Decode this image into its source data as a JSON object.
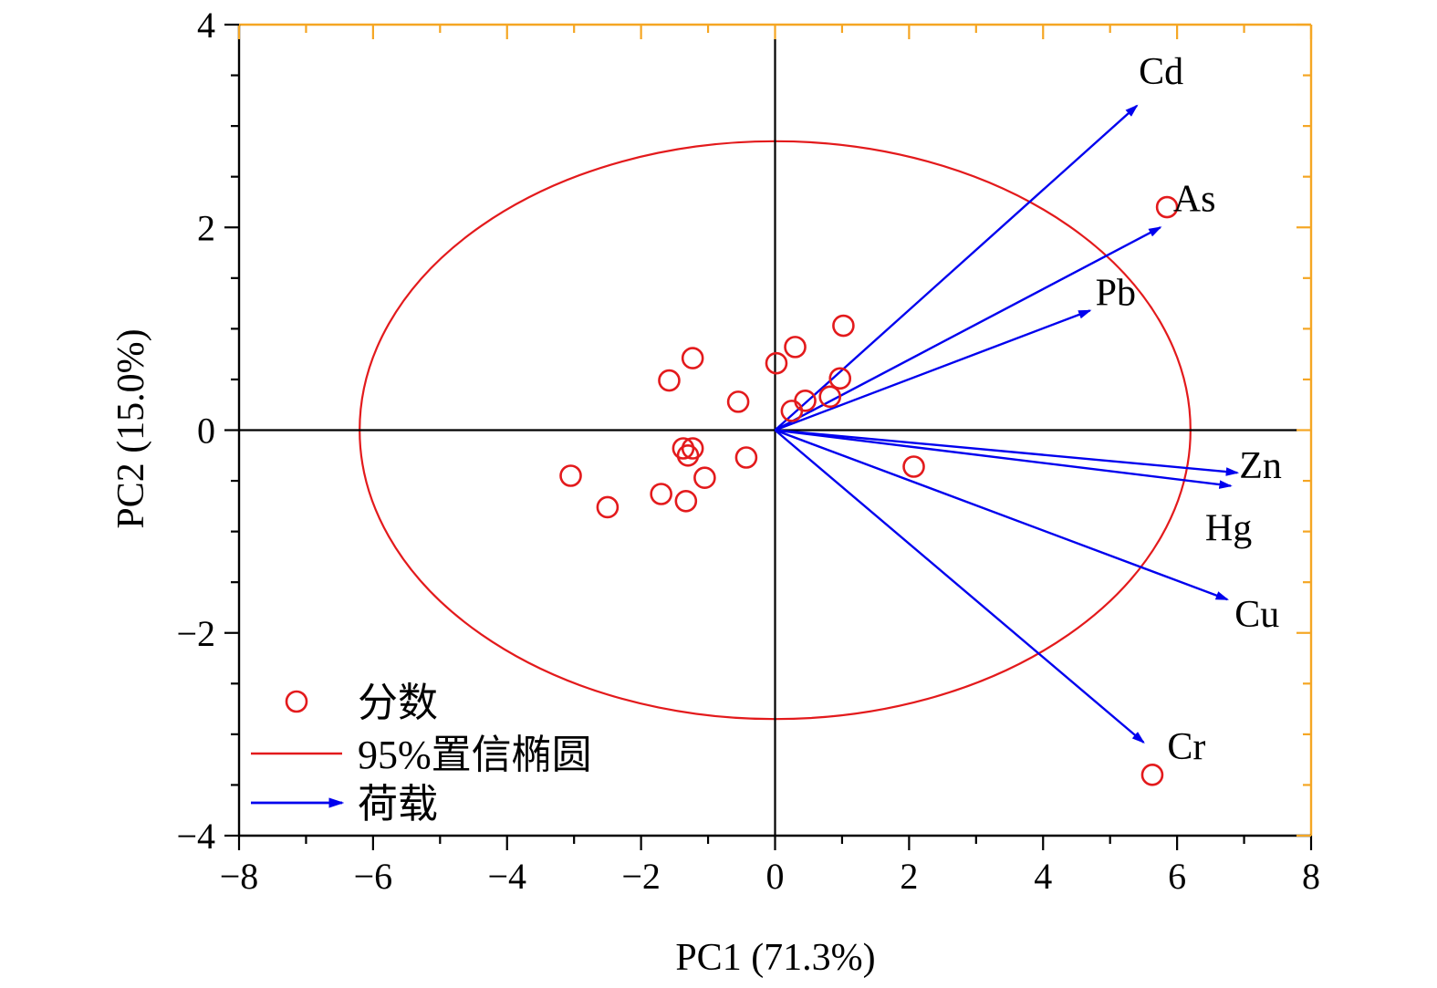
{
  "chart_data": {
    "type": "scatter",
    "title": "",
    "xlabel": "PC1 (71.3%)",
    "ylabel": "PC2 (15.0%)",
    "xlim": [
      -8,
      8
    ],
    "ylim": [
      -4,
      4
    ],
    "x_ticks": [
      -8,
      -6,
      -4,
      -2,
      0,
      2,
      4,
      6,
      8
    ],
    "y_ticks": [
      -4,
      -2,
      0,
      2,
      4
    ],
    "x_tick_labels": [
      "−8",
      "−6",
      "−4",
      "−2",
      "0",
      "2",
      "4",
      "6",
      "8"
    ],
    "y_tick_labels": [
      "−4",
      "−2",
      "0",
      "2",
      "4"
    ],
    "grid": false,
    "colors": {
      "scores": "#e31a1c",
      "ellipse": "#e31a1c",
      "loadings": "#0000ee",
      "axes": "#000000",
      "right_top_axis": "#f5a623"
    },
    "scores": {
      "name": "分数",
      "points": [
        {
          "x": 5.85,
          "y": 2.2
        },
        {
          "x": 1.02,
          "y": 1.03
        },
        {
          "x": 0.3,
          "y": 0.82
        },
        {
          "x": 0.02,
          "y": 0.66
        },
        {
          "x": 0.97,
          "y": 0.51
        },
        {
          "x": 0.82,
          "y": 0.33
        },
        {
          "x": 0.45,
          "y": 0.29
        },
        {
          "x": 0.25,
          "y": 0.19
        },
        {
          "x": -1.23,
          "y": 0.71
        },
        {
          "x": -1.58,
          "y": 0.49
        },
        {
          "x": -0.55,
          "y": 0.28
        },
        {
          "x": -1.37,
          "y": -0.18
        },
        {
          "x": -1.23,
          "y": -0.18
        },
        {
          "x": -1.3,
          "y": -0.25
        },
        {
          "x": -0.43,
          "y": -0.27
        },
        {
          "x": -1.05,
          "y": -0.47
        },
        {
          "x": -3.05,
          "y": -0.45
        },
        {
          "x": -2.5,
          "y": -0.76
        },
        {
          "x": -1.7,
          "y": -0.63
        },
        {
          "x": -1.33,
          "y": -0.7
        },
        {
          "x": 2.07,
          "y": -0.36
        },
        {
          "x": 5.63,
          "y": -3.4
        }
      ]
    },
    "ellipse": {
      "name": "95%置信椭圆",
      "center": [
        0,
        0
      ],
      "rx": 6.2,
      "ry": 2.85
    },
    "loadings": {
      "name": "荷载",
      "vectors": [
        {
          "label": "Cd",
          "x": 5.4,
          "y": 3.2
        },
        {
          "label": "As",
          "x": 5.75,
          "y": 2.0
        },
        {
          "label": "Pb",
          "x": 4.7,
          "y": 1.18
        },
        {
          "label": "Zn",
          "x": 6.9,
          "y": -0.42
        },
        {
          "label": "Hg",
          "x": 6.8,
          "y": -0.55
        },
        {
          "label": "Cu",
          "x": 6.75,
          "y": -1.67
        },
        {
          "label": "Cr",
          "x": 5.5,
          "y": -3.08
        }
      ]
    },
    "legend": {
      "placement": "bottom-left",
      "entries": [
        "分数",
        "95%置信椭圆",
        "荷载"
      ]
    }
  }
}
